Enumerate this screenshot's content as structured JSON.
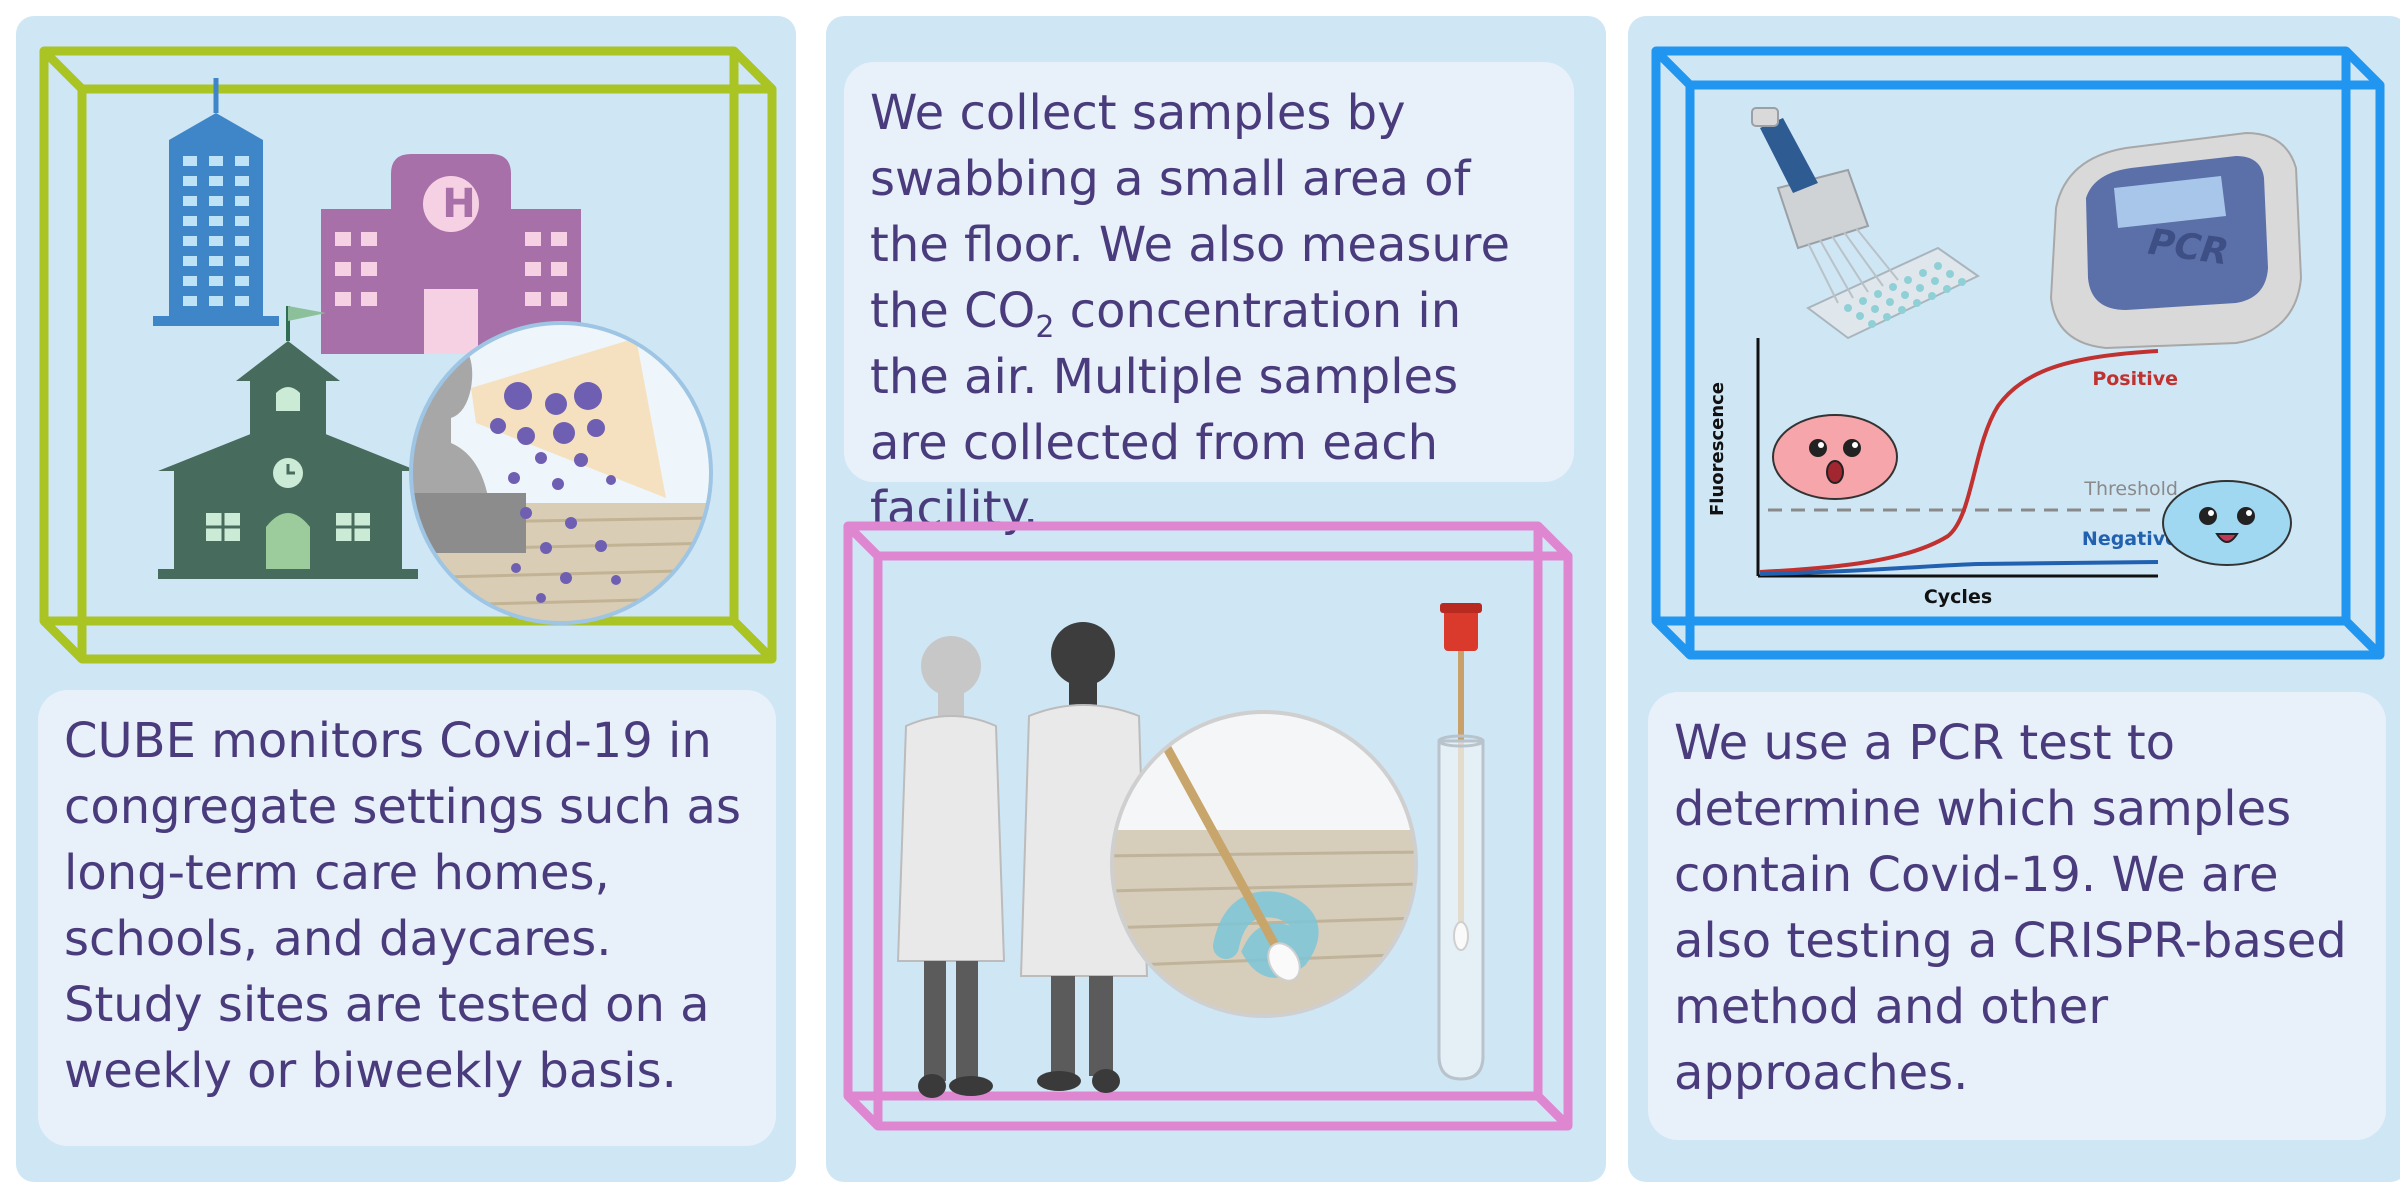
{
  "panels": [
    {
      "text": "CUBE monitors Covid-19 in congregate settings such as long-term care homes, schools, and daycares. Study sites are tested on a weekly or biweekly basis."
    },
    {
      "text_a": "We collect samples by swabbing a small area of the floor. We also measure the CO",
      "sub": "2",
      "text_b": " concentration in the air. Multiple samples are collected from each facility."
    },
    {
      "text": "We use a PCR test to determine which samples contain Covid-19. We are also testing a CRISPR-based method and other approaches."
    }
  ],
  "pcr": {
    "machine_label": "PCR",
    "y_axis": "Fluorescence",
    "x_axis": "Cycles",
    "positive": "Positive",
    "threshold": "Threshold",
    "negative": "Negative"
  },
  "hospital_letter": "H",
  "colors": {
    "panel_bg": "#cfe6f5",
    "card_bg": "#e8f1fa",
    "text": "#4a3c7c",
    "cube1": "#a9c423",
    "cube2": "#de86cf",
    "cube3": "#2096f0",
    "positive": "#c0312f",
    "negative": "#2161b0"
  }
}
